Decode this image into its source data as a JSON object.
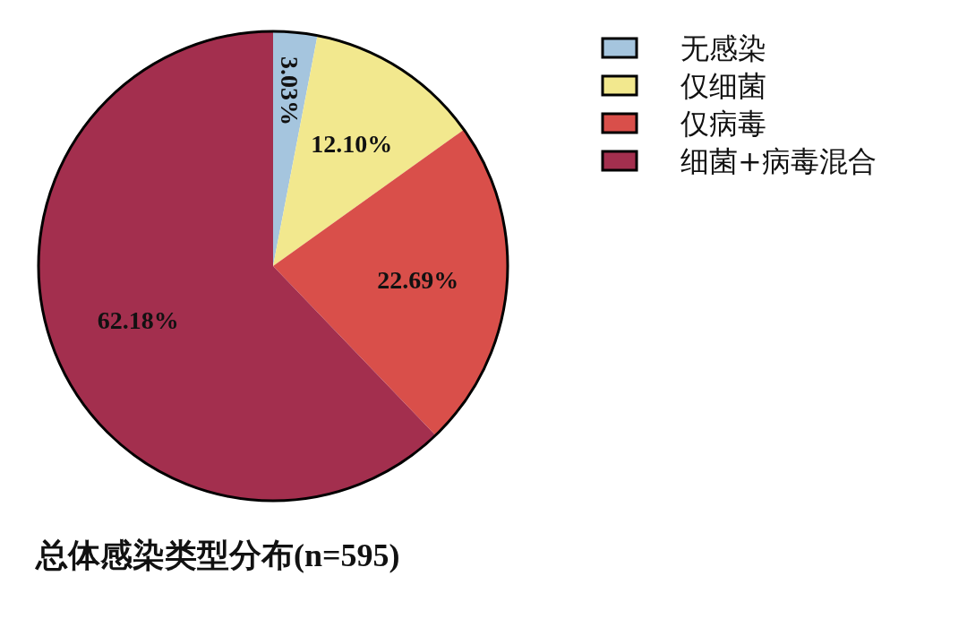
{
  "chart_data": {
    "type": "pie",
    "title": "总体感染类型分布(n=595)",
    "categories": [
      "无感染",
      "仅细菌",
      "仅病毒",
      "细菌+病毒混合"
    ],
    "values": [
      3.03,
      12.1,
      22.69,
      62.18
    ],
    "colors": [
      "#a5c5de",
      "#f2e88e",
      "#d94f4a",
      "#a32f4e"
    ],
    "value_labels": [
      "3.03%",
      "12.10%",
      "22.69%",
      "62.18%"
    ],
    "legend": "top right"
  }
}
